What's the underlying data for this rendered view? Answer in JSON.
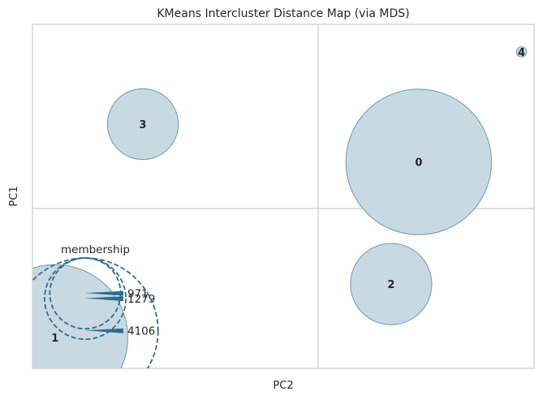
{
  "chart_data": {
    "type": "scatter",
    "title": "KMeans Intercluster Distance Map (via MDS)",
    "xlabel": "PC2",
    "ylabel": "PC1",
    "xlim": [
      -1,
      1
    ],
    "ylim": [
      -1,
      1
    ],
    "grid": true,
    "legend_placement": "bottom-left",
    "clusters": [
      {
        "label": "0",
        "x": 0.54,
        "y": 0.2,
        "size": 4106
      },
      {
        "label": "1",
        "x": -0.91,
        "y": -0.82,
        "size": 4106
      },
      {
        "label": "2",
        "x": 0.43,
        "y": -0.51,
        "size": 1279
      },
      {
        "label": "3",
        "x": -0.56,
        "y": 0.42,
        "size": 971
      },
      {
        "label": "4",
        "x": 0.95,
        "y": 0.84,
        "size": 20
      }
    ],
    "legend": {
      "title": "membership",
      "entries": [
        "971",
        "1279",
        "4106"
      ]
    }
  },
  "colors": {
    "bubble_fill": "#c5d7e0",
    "bubble_stroke": "#6a9bb2",
    "legend_stroke": "#2f6d8f",
    "grid": "#cccccc",
    "frame": "#cccccc"
  }
}
